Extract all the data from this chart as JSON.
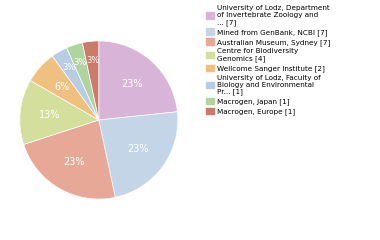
{
  "legend_labels": [
    "University of Lodz, Department\nof Invertebrate Zoology and\n... [7]",
    "Mined from GenBank, NCBI [7]",
    "Australian Museum, Sydney [7]",
    "Centre for Biodiversity\nGenomics [4]",
    "Wellcome Sanger Institute [2]",
    "University of Lodz, Faculty of\nBiology and Environmental\nPr... [1]",
    "Macrogen, Japan [1]",
    "Macrogen, Europe [1]"
  ],
  "values": [
    7,
    7,
    7,
    4,
    2,
    1,
    1,
    1
  ],
  "colors": [
    "#d8b4d8",
    "#c5d5e8",
    "#e8a898",
    "#d4df9d",
    "#f0c080",
    "#b8cce4",
    "#b0d4a0",
    "#cc7a6a"
  ],
  "pct_labels": [
    "23%",
    "23%",
    "23%",
    "13%",
    "6%",
    "3%",
    "3%",
    "3%"
  ],
  "background_color": "#ffffff",
  "text_color": "#ffffff",
  "fontsize": 7,
  "small_fontsize": 6
}
